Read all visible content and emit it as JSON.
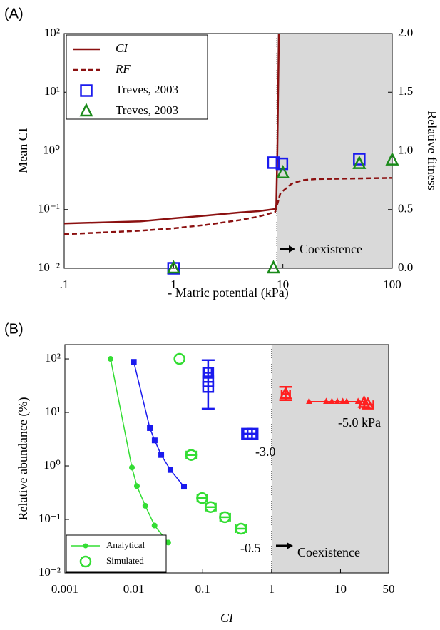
{
  "chart_data": [
    {
      "type": "line",
      "panel": "(A)",
      "xlabel": "- Matric potential (kPa)",
      "ylabel": "Mean CI",
      "y2label": "Relative fitness",
      "xscale": "log",
      "yscale": "log",
      "xlim": [
        0.1,
        100
      ],
      "xticks": [
        {
          "value": 0.1,
          "label": ".1"
        },
        1,
        10,
        100
      ],
      "ylim": [
        0.01,
        100
      ],
      "yticks": [
        {
          "value": 0.01,
          "label": "10⁻²"
        },
        {
          "value": 0.1,
          "label": "10⁻¹"
        },
        {
          "value": 1,
          "label": "10⁰"
        },
        {
          "value": 10,
          "label": "10¹"
        },
        {
          "value": 100,
          "label": "10²"
        }
      ],
      "y2lim": [
        0,
        2
      ],
      "y2ticks": [
        {
          "value": 0,
          "label": "0.0"
        },
        0.5,
        {
          "value": 1,
          "label": "1.0"
        },
        1.5,
        {
          "value": 2,
          "label": "2.0"
        }
      ],
      "hline": 1,
      "shade_xlim": [
        8.8,
        100
      ],
      "legend": "upper left",
      "annotations": [
        {
          "text": "Coexistence",
          "color": "#000000"
        }
      ],
      "series": [
        {
          "name": "CI",
          "italic": true,
          "color": "#8b1010",
          "line": "solid",
          "axis": "y",
          "x": [
            0.1,
            0.5,
            1,
            2,
            4,
            6,
            8.5,
            8.7,
            8.9,
            9.2
          ],
          "values": [
            0.058,
            0.063,
            0.071,
            0.079,
            0.089,
            0.094,
            0.102,
            0.12,
            1.0,
            100
          ]
        },
        {
          "name": "RF",
          "italic": true,
          "color": "#8b1010",
          "line": "dashed",
          "axis": "y2",
          "x": [
            0.1,
            0.5,
            1,
            2,
            4,
            6,
            8.5,
            9.5,
            12,
            15,
            20,
            100
          ],
          "values": [
            0.29,
            0.32,
            0.34,
            0.37,
            0.41,
            0.44,
            0.48,
            0.64,
            0.72,
            0.75,
            0.76,
            0.77
          ]
        },
        {
          "name": "Treves, 2003",
          "color": "#1a1aee",
          "marker": "square",
          "axis": "y2",
          "x": [
            1,
            8.2,
            9.8,
            50
          ],
          "values": [
            0,
            0.9,
            0.89,
            0.93
          ]
        },
        {
          "name": "Treves, 2003",
          "color": "#1a8a1a",
          "marker": "triangle",
          "axis": "y2",
          "x": [
            1,
            8.2,
            10,
            50,
            100
          ],
          "values": [
            0,
            0,
            0.81,
            0.89,
            0.92
          ]
        }
      ]
    },
    {
      "type": "scatter",
      "panel": "(B)",
      "xlabel": "CI",
      "ylabel": "Relative abundance (%)",
      "xscale": "log",
      "yscale": "log",
      "xlim": [
        0.001,
        50
      ],
      "xticks": [
        0.001,
        0.01,
        0.1,
        1,
        10,
        50
      ],
      "ylim": [
        0.01,
        185
      ],
      "yticks": [
        {
          "value": 0.01,
          "label": "10⁻²"
        },
        {
          "value": 0.1,
          "label": "10⁻¹"
        },
        {
          "value": 1,
          "label": "10⁰"
        },
        {
          "value": 10,
          "label": "10¹"
        },
        {
          "value": 100,
          "label": "10²"
        }
      ],
      "shade_xlim": [
        1,
        50
      ],
      "legend": "lower left",
      "legend_labels": [
        "Analytical",
        "Simulated"
      ],
      "annotations": [
        {
          "text": "-3.0",
          "color": "#1a1aee"
        },
        {
          "text": "-0.5",
          "color": "#33dd33"
        },
        {
          "text": "-5.0 kPa",
          "color": "#ff2020"
        },
        {
          "text": "Coexistence",
          "color": "#000000"
        }
      ],
      "series": [
        {
          "color": "#33dd33",
          "line": "solid",
          "marker": "circle",
          "filled": true,
          "x": [
            0.0046,
            0.0094,
            0.0111,
            0.0147,
            0.02,
            0.0316
          ],
          "values": [
            100,
            0.93,
            0.42,
            0.18,
            0.077,
            0.037
          ]
        },
        {
          "color": "#1a1aee",
          "line": "solid",
          "marker": "square",
          "filled": true,
          "x": [
            0.01,
            0.0171,
            0.0201,
            0.025,
            0.034,
            0.0535
          ],
          "values": [
            88,
            5.1,
            3.0,
            1.6,
            0.84,
            0.41
          ]
        },
        {
          "color": "#ff2020",
          "line": "solid",
          "marker": "triangle",
          "filled": true,
          "x": [
            3.5,
            6.2,
            7.5,
            9,
            10.8,
            12.3,
            18,
            23
          ],
          "values": [
            16,
            16,
            16,
            16,
            16,
            16,
            16,
            16
          ]
        },
        {
          "color": "#33dd33",
          "marker": "circle",
          "x": [
            0.046,
            0.068,
            0.098,
            0.13,
            0.21,
            0.36
          ],
          "values": [
            100,
            1.6,
            0.25,
            0.17,
            0.11,
            0.067
          ],
          "xrange": [
            null,
            [
              0.058,
              0.08
            ],
            [
              0.084,
              0.114
            ],
            [
              0.11,
              0.155
            ],
            [
              0.18,
              0.25
            ],
            [
              0.3,
              0.43
            ]
          ]
        },
        {
          "color": "#1a1aee",
          "marker": "square",
          "x": [
            0.12,
            0.12,
            0.12,
            0.44,
            0.53
          ],
          "values": [
            55,
            38,
            30,
            4,
            4
          ],
          "xrange": [
            [
              0.105,
              0.135
            ],
            null,
            null,
            [
              0.39,
              0.6
            ],
            null
          ],
          "yrange": [
            null,
            [
              11.7,
              95
            ],
            null,
            null,
            null
          ]
        },
        {
          "color": "#ff2020",
          "marker": "triangle",
          "x": [
            1.6,
            22,
            25
          ],
          "values": [
            22,
            15,
            14
          ],
          "xrange": [
            [
              1.4,
              1.85
            ],
            null,
            [
              19,
              30
            ]
          ],
          "yrange": [
            [
              17,
              30
            ],
            null,
            null
          ]
        }
      ]
    }
  ]
}
